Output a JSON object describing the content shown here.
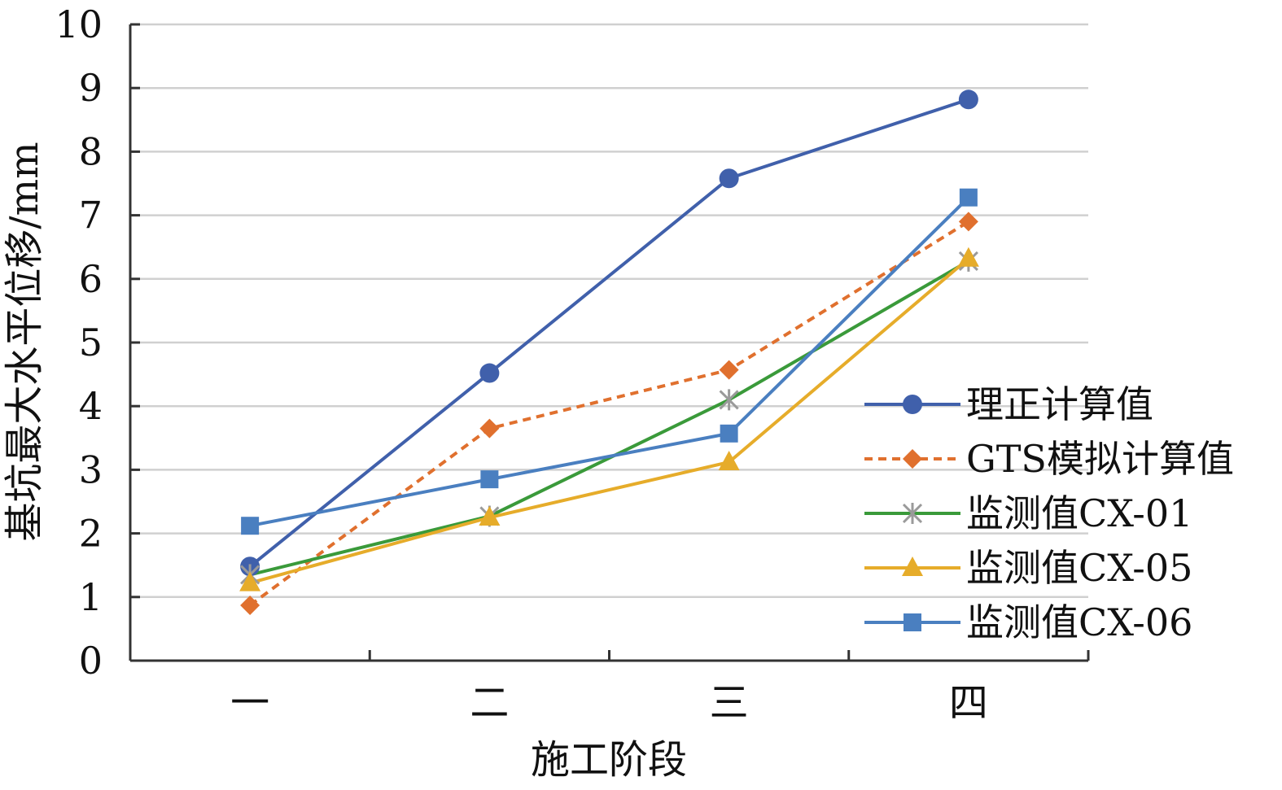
{
  "chart_data": {
    "type": "line",
    "title": "",
    "xlabel": "施工阶段",
    "ylabel": "基坑最大水平位移/mm",
    "categories": [
      "一",
      "二",
      "三",
      "四"
    ],
    "ylim": [
      0,
      10
    ],
    "yticks": [
      0,
      1,
      2,
      3,
      4,
      5,
      6,
      7,
      8,
      9,
      10
    ],
    "grid": true,
    "legend_position": "right",
    "series": [
      {
        "name": "理正计算值",
        "values": [
          1.48,
          4.52,
          7.58,
          8.82
        ],
        "color": "#4060ab",
        "marker": "circle",
        "dash": "solid"
      },
      {
        "name": "GTS模拟计算值",
        "values": [
          0.87,
          3.65,
          4.57,
          6.9
        ],
        "color": "#e0702e",
        "marker": "diamond",
        "dash": "dashed"
      },
      {
        "name": "监测值CX-01",
        "values": [
          1.35,
          2.27,
          4.1,
          6.28
        ],
        "color": "#3a9a3a",
        "marker": "asterisk",
        "dash": "solid"
      },
      {
        "name": "监测值CX-05",
        "values": [
          1.22,
          2.25,
          3.12,
          6.32
        ],
        "color": "#e6ac2a",
        "marker": "triangle",
        "dash": "solid"
      },
      {
        "name": "监测值CX-06",
        "values": [
          2.12,
          2.85,
          3.57,
          7.28
        ],
        "color": "#4a7fc0",
        "marker": "square",
        "dash": "solid"
      }
    ]
  }
}
